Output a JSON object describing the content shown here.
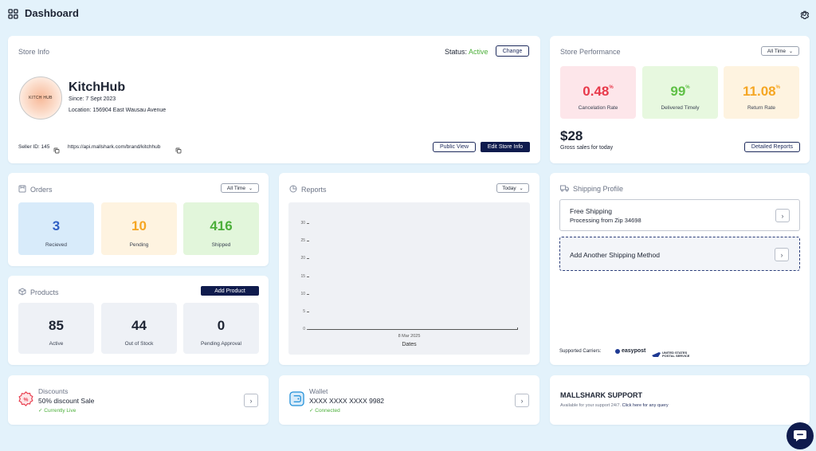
{
  "header": {
    "title": "Dashboard",
    "settings_icon": "gear-icon",
    "apps_icon": "grid-icon"
  },
  "store_info": {
    "title": "Store Info",
    "status_label": "Status:",
    "status_value": "Active",
    "change_label": "Change",
    "logo_text": "KITCH HUB",
    "store_name": "KitchHub",
    "since": "Since: 7 Sept 2023",
    "location": "Location: 156904 East Wausau Avenue",
    "seller_id": "Seller ID: 145",
    "url": "https://api.mallshark.com/brand/kitchhub",
    "public_view_label": "Public View",
    "edit_label": "Edit Store Info"
  },
  "performance": {
    "title": "Store Performance",
    "filter": "All Time",
    "cards": [
      {
        "value": "0.48",
        "unit": "%",
        "label": "Cancelation Rate",
        "color": "#e8394a",
        "bg": "#fde6ea"
      },
      {
        "value": "99",
        "unit": "%",
        "label": "Delivered Timely",
        "color": "#5fc046",
        "bg": "#e7f8df"
      },
      {
        "value": "11.08",
        "unit": "%",
        "label": "Return Rate",
        "color": "#f5a623",
        "bg": "#fef3e0"
      }
    ],
    "gross": "$28",
    "gross_label": "Gross sales for today",
    "detailed_label": "Detailed Reports"
  },
  "orders": {
    "title": "Orders",
    "filter": "All Time",
    "cards": [
      {
        "value": "3",
        "label": "Recieved",
        "color": "#2f5fc4",
        "bg": "#d8ebfa"
      },
      {
        "value": "10",
        "label": "Pending",
        "color": "#f5a623",
        "bg": "#fef3e0"
      },
      {
        "value": "416",
        "label": "Shipped",
        "color": "#4caf3a",
        "bg": "#e2f6db"
      }
    ]
  },
  "products": {
    "title": "Products",
    "add_label": "Add Product",
    "cards": [
      {
        "value": "85",
        "label": "Active"
      },
      {
        "value": "44",
        "label": "Out of Stock"
      },
      {
        "value": "0",
        "label": "Pending Approval"
      }
    ]
  },
  "reports": {
    "title": "Reports",
    "filter": "Today"
  },
  "chart_data": {
    "type": "bar",
    "categories": [
      "8 Mar 2025"
    ],
    "values": [
      0
    ],
    "xlabel": "Dates",
    "ylabel": "",
    "ylim": [
      0,
      30
    ],
    "yticks": [
      "0",
      "5",
      "10",
      "15",
      "20",
      "25",
      "30"
    ]
  },
  "shipping": {
    "title": "Shipping Profile",
    "free_title": "Free Shipping",
    "free_sub": "Processing from Zip 34698",
    "add_method": "Add Another Shipping Method",
    "carriers_label": "Supported Carriers:",
    "carrier1": "easypost",
    "carrier2a": "UNITED STATES",
    "carrier2b": "POSTAL SERVICE"
  },
  "discounts": {
    "title": "Discounts",
    "name": "50% discount Sale",
    "status": "✓ Currently Live"
  },
  "wallet": {
    "title": "Wallet",
    "card": "XXXX XXXX XXXX 9982",
    "status": "✓ Connected"
  },
  "support": {
    "title": "MALLSHARK SUPPORT",
    "text": "Available for your support 24/7.",
    "link": "Click here for any query"
  },
  "chat_icon": "chat-icon"
}
